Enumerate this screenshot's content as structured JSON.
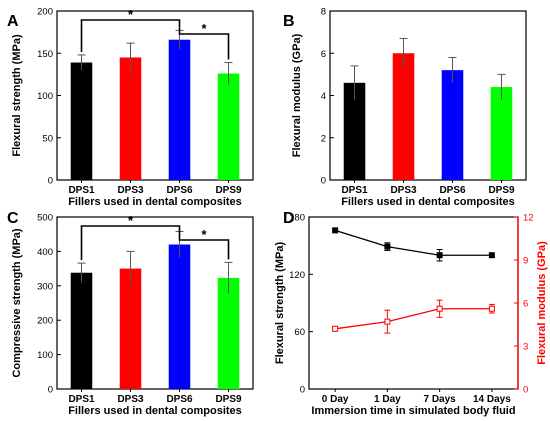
{
  "chart_data": [
    {
      "panel": "A",
      "type": "bar",
      "categories": [
        "DPS1",
        "DPS3",
        "DPS6",
        "DPS9"
      ],
      "values": [
        139,
        145,
        166,
        126
      ],
      "errors": [
        9,
        17,
        11,
        13
      ],
      "colors": [
        "#000000",
        "#ff0000",
        "#0000ff",
        "#00ff00"
      ],
      "xlabel": "Fillers used in dental composites",
      "ylabel": "Flexural strength (MPa)",
      "ylim": [
        0,
        200
      ],
      "yticks": [
        0,
        50,
        100,
        150,
        200
      ],
      "significance": [
        {
          "from": "DPS1",
          "to": "DPS6",
          "label": "*"
        },
        {
          "from": "DPS6",
          "to": "DPS9",
          "label": "*"
        }
      ]
    },
    {
      "panel": "B",
      "type": "bar",
      "categories": [
        "DPS1",
        "DPS3",
        "DPS6",
        "DPS9"
      ],
      "values": [
        4.6,
        6.0,
        5.2,
        4.4
      ],
      "errors": [
        0.8,
        0.7,
        0.6,
        0.6
      ],
      "colors": [
        "#000000",
        "#ff0000",
        "#0000ff",
        "#00ff00"
      ],
      "xlabel": "Fillers used in dental composites",
      "ylabel": "Flexural modulus (GPa)",
      "ylim": [
        0,
        8
      ],
      "yticks": [
        0,
        2,
        4,
        6,
        8
      ],
      "significance": []
    },
    {
      "panel": "C",
      "type": "bar",
      "categories": [
        "DPS1",
        "DPS3",
        "DPS6",
        "DPS9"
      ],
      "values": [
        338,
        350,
        420,
        323
      ],
      "errors": [
        28,
        50,
        38,
        45
      ],
      "colors": [
        "#000000",
        "#ff0000",
        "#0000ff",
        "#00ff00"
      ],
      "xlabel": "Fillers used in dental composites",
      "ylabel": "Compressive strength (MPa)",
      "ylim": [
        0,
        500
      ],
      "yticks": [
        0,
        100,
        200,
        300,
        400,
        500
      ],
      "significance": [
        {
          "from": "DPS1",
          "to": "DPS6",
          "label": "*"
        },
        {
          "from": "DPS6",
          "to": "DPS9",
          "label": "*"
        }
      ]
    },
    {
      "panel": "D",
      "type": "line",
      "categories": [
        "0 Day",
        "1 Day",
        "7 Days",
        "14 Days"
      ],
      "xlabel": "Immersion time in simulated body fluid",
      "ylabel": "Flexural strength (MPa)",
      "ylim": [
        0,
        180
      ],
      "yticks": [
        0,
        60,
        120,
        180
      ],
      "ylabel_right": "Flexural modulus (GPa)",
      "ylim_right": [
        0,
        12
      ],
      "yticks_right": [
        0,
        3,
        6,
        9,
        12
      ],
      "right_axis_color": "#ff0000",
      "series": [
        {
          "axis": "left",
          "color": "#000000",
          "values": [
            166,
            149,
            140,
            140
          ],
          "errors": [
            0,
            4,
            6,
            0
          ]
        },
        {
          "axis": "right",
          "color": "#ff0000",
          "values": [
            4.2,
            4.7,
            5.6,
            5.6
          ],
          "errors": [
            0,
            0.8,
            0.6,
            0.3
          ]
        }
      ]
    }
  ]
}
